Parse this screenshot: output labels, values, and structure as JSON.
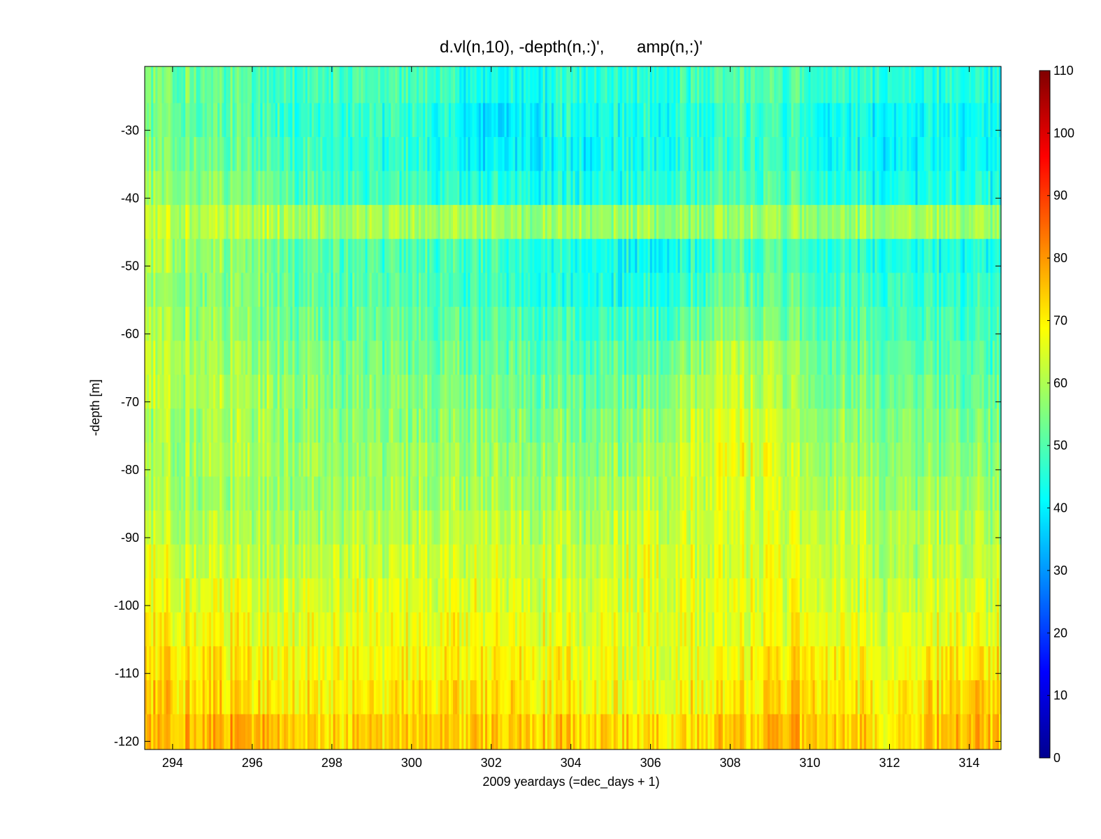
{
  "chart_data": {
    "type": "heatmap",
    "title": "d.vl(n,10), -depth(n,:)',       amp(n,:)'",
    "xlabel": "2009 yeardays (=dec_days + 1)",
    "ylabel": "-depth [m]",
    "xlim": [
      293.3,
      314.8
    ],
    "ylim": [
      -121.2,
      -20.6
    ],
    "x_ticks": [
      294,
      296,
      298,
      300,
      302,
      304,
      306,
      308,
      310,
      312,
      314
    ],
    "y_ticks": [
      -30,
      -40,
      -50,
      -60,
      -70,
      -80,
      -90,
      -100,
      -110,
      -120
    ],
    "colorbar": {
      "colormap": "jet",
      "clim": [
        0,
        110
      ],
      "ticks": [
        0,
        10,
        20,
        30,
        40,
        50,
        60,
        70,
        80,
        90,
        100,
        110
      ]
    },
    "grid": false,
    "depth_bins": [
      -20.6,
      -26,
      -31,
      -36,
      -41,
      -46,
      -51,
      -56,
      -61,
      -66,
      -71,
      -76,
      -81,
      -86,
      -91,
      -96,
      -101,
      -106,
      -111,
      -116,
      -121.2
    ],
    "amplitude_profile_by_day": {
      "days": [
        294,
        296,
        298,
        300,
        302,
        304,
        306,
        308,
        310,
        312,
        314
      ],
      "bin_centers": [
        -23,
        -28,
        -33,
        -38,
        -43,
        -48,
        -53,
        -58,
        -63,
        -68,
        -73,
        -78,
        -83,
        -88,
        -93,
        -98,
        -103,
        -108,
        -113,
        -118
      ],
      "values": [
        [
          55,
          54,
          55,
          58,
          62,
          60,
          58,
          60,
          62,
          62,
          60,
          60,
          60,
          62,
          65,
          68,
          70,
          72,
          74,
          76
        ],
        [
          50,
          50,
          52,
          55,
          62,
          55,
          55,
          56,
          58,
          60,
          60,
          60,
          58,
          60,
          62,
          65,
          68,
          70,
          72,
          78
        ],
        [
          48,
          46,
          46,
          48,
          58,
          50,
          50,
          52,
          54,
          55,
          56,
          58,
          58,
          60,
          62,
          64,
          66,
          68,
          70,
          72
        ],
        [
          48,
          46,
          45,
          46,
          58,
          48,
          48,
          50,
          52,
          54,
          55,
          56,
          58,
          60,
          62,
          64,
          66,
          68,
          70,
          74
        ],
        [
          42,
          38,
          40,
          44,
          58,
          48,
          48,
          50,
          52,
          54,
          56,
          58,
          60,
          62,
          64,
          66,
          68,
          70,
          72,
          74
        ],
        [
          46,
          44,
          42,
          44,
          58,
          44,
          44,
          48,
          50,
          52,
          54,
          56,
          58,
          60,
          62,
          64,
          66,
          68,
          70,
          74
        ],
        [
          46,
          44,
          44,
          46,
          58,
          42,
          44,
          48,
          52,
          55,
          58,
          60,
          62,
          64,
          66,
          66,
          66,
          66,
          68,
          72
        ],
        [
          50,
          48,
          48,
          50,
          58,
          50,
          52,
          56,
          62,
          64,
          66,
          68,
          66,
          64,
          64,
          66,
          66,
          68,
          70,
          74
        ],
        [
          48,
          46,
          46,
          48,
          58,
          48,
          50,
          52,
          55,
          56,
          58,
          60,
          62,
          64,
          66,
          66,
          68,
          72,
          74,
          76
        ],
        [
          44,
          40,
          40,
          42,
          58,
          44,
          46,
          48,
          50,
          52,
          54,
          56,
          58,
          60,
          60,
          62,
          64,
          66,
          68,
          70
        ],
        [
          44,
          42,
          42,
          44,
          58,
          44,
          46,
          48,
          50,
          52,
          54,
          56,
          58,
          60,
          62,
          64,
          66,
          70,
          74,
          76
        ]
      ]
    }
  }
}
